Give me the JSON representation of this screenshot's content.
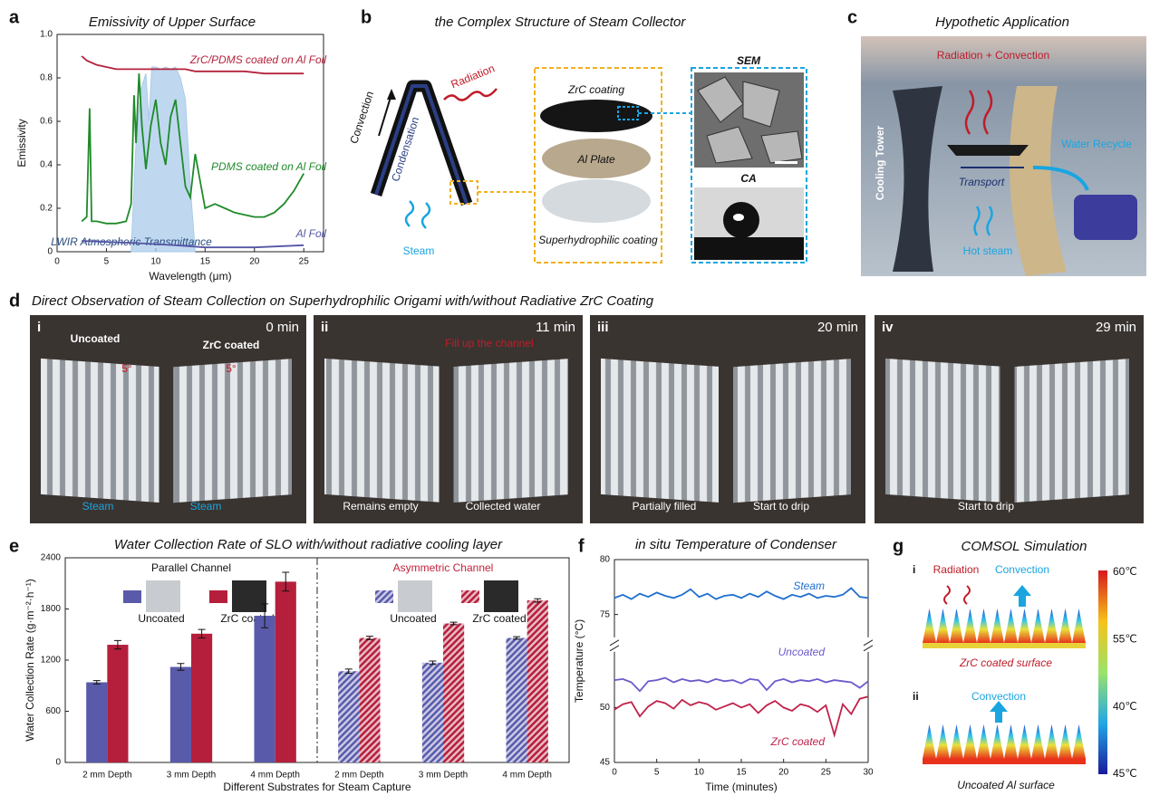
{
  "panel_labels": [
    "a",
    "b",
    "c",
    "d",
    "e",
    "f",
    "g"
  ],
  "chart_data": [
    {
      "type": "line",
      "title": "Emissivity of Upper Surface",
      "x_label": "Wavelength (μm)",
      "y_label": "Emissivity",
      "xlim": [
        0,
        27
      ],
      "xticks": [
        0,
        5,
        10,
        15,
        20,
        25
      ],
      "ylim": [
        0,
        1
      ],
      "yticks": [
        0,
        0.2,
        0.4,
        0.6,
        0.8,
        {
          "value": 1,
          "label": "1.0"
        }
      ],
      "series": [
        {
          "name": "LWIR Atmospheric Transmittance",
          "color": "#a9cbe9",
          "kind": "area",
          "x": [
            7.5,
            8,
            8.5,
            9,
            9.3,
            9.6,
            10,
            10.5,
            11,
            11.5,
            12,
            12.5,
            13,
            13.5,
            14
          ],
          "values": [
            0,
            0.5,
            0.75,
            0.82,
            0.6,
            0.85,
            0.85,
            0.84,
            0.85,
            0.84,
            0.85,
            0.8,
            0.7,
            0.3,
            0
          ]
        },
        {
          "name": "ZrC/PDMS coated on Al Foil",
          "color": "#b5223c",
          "x": [
            2.5,
            3,
            4,
            5,
            6,
            7,
            8,
            9,
            10,
            11,
            12,
            13,
            14,
            15,
            17,
            19,
            21,
            23,
            25
          ],
          "values": [
            0.9,
            0.88,
            0.86,
            0.85,
            0.84,
            0.84,
            0.84,
            0.84,
            0.84,
            0.84,
            0.84,
            0.84,
            0.83,
            0.83,
            0.83,
            0.83,
            0.82,
            0.82,
            0.82
          ]
        },
        {
          "name": "PDMS coated on Al Foil",
          "color": "#1f8a2a",
          "x": [
            2.5,
            3,
            3.3,
            3.5,
            4,
            5,
            6,
            7,
            7.5,
            7.8,
            8,
            8.3,
            8.6,
            9,
            9.5,
            10,
            10.5,
            11,
            11.5,
            12,
            12.5,
            13,
            13.5,
            14,
            15,
            16,
            17,
            18,
            19,
            20,
            21,
            22,
            23,
            24,
            25
          ],
          "values": [
            0.14,
            0.16,
            0.66,
            0.14,
            0.14,
            0.13,
            0.13,
            0.14,
            0.22,
            0.72,
            0.5,
            0.82,
            0.58,
            0.38,
            0.58,
            0.7,
            0.5,
            0.4,
            0.62,
            0.7,
            0.5,
            0.3,
            0.25,
            0.45,
            0.2,
            0.22,
            0.2,
            0.18,
            0.17,
            0.16,
            0.16,
            0.18,
            0.22,
            0.28,
            0.36
          ]
        },
        {
          "name": "Al Foil",
          "color": "#5555a5",
          "x": [
            2.5,
            5,
            8,
            10,
            12,
            15,
            20,
            25
          ],
          "values": [
            0.05,
            0.045,
            0.04,
            0.035,
            0.03,
            0.02,
            0.02,
            0.03
          ]
        }
      ]
    },
    {
      "type": "bar",
      "title": "Water Collection Rate of SLO with/without radiative cooling layer",
      "x_label": "Different Substrates for Steam Capture",
      "y_label": "Water Collection Rate (g·m⁻²·h⁻¹)",
      "categories": [
        "2 mm Depth",
        "3 mm Depth",
        "4 mm Depth",
        "2 mm Depth",
        "3 mm Depth",
        "4 mm Depth"
      ],
      "groups": [
        {
          "name": "Parallel Channel",
          "color": "#111111",
          "pattern": "solid"
        },
        {
          "name": "Asymmetric Channel",
          "color": "#c0223c",
          "pattern": "hatched"
        }
      ],
      "ylim": [
        0,
        2400
      ],
      "yticks": [
        0,
        600,
        1200,
        1800,
        2400
      ],
      "series": [
        {
          "name": "Uncoated",
          "color": "#5a5aaa",
          "values": [
            940,
            1120,
            1720,
            1070,
            1170,
            1460
          ],
          "errors": [
            20,
            40,
            140,
            25,
            20,
            15
          ]
        },
        {
          "name": "ZrC coated",
          "color": "#b51f3c",
          "values": [
            1380,
            1510,
            2120,
            1460,
            1630,
            1900
          ],
          "errors": [
            50,
            50,
            110,
            20,
            15,
            20
          ]
        }
      ]
    },
    {
      "type": "line",
      "title": "in situ Temperature of Condenser",
      "x_label": "Time (minutes)",
      "y_label": "Temperature (°C)",
      "xlim": [
        0,
        30
      ],
      "xticks": [
        0,
        5,
        10,
        15,
        20,
        25,
        30
      ],
      "ylim": [
        45,
        80
      ],
      "yticks": [
        45,
        50,
        75,
        80
      ],
      "axis_break": [
        54.5,
        73.5
      ],
      "x": [
        0,
        1,
        2,
        3,
        4,
        5,
        6,
        7,
        8,
        9,
        10,
        11,
        12,
        13,
        14,
        15,
        16,
        17,
        18,
        19,
        20,
        21,
        22,
        23,
        24,
        25,
        26,
        27,
        28,
        29,
        30
      ],
      "series": [
        {
          "name": "Steam",
          "color": "#1f6fd0",
          "values": [
            76.5,
            76.8,
            76.4,
            76.9,
            76.6,
            77.0,
            76.7,
            76.5,
            76.8,
            77.3,
            76.6,
            76.9,
            76.4,
            76.7,
            76.8,
            76.5,
            76.9,
            76.6,
            77.1,
            76.7,
            76.4,
            76.8,
            76.6,
            76.9,
            76.5,
            76.7,
            76.6,
            76.8,
            77.4,
            76.6,
            76.5
          ]
        },
        {
          "name": "Uncoated",
          "color": "#6a5acd",
          "values": [
            52.5,
            52.6,
            52.3,
            51.5,
            52.4,
            52.5,
            52.7,
            52.3,
            52.6,
            52.4,
            52.5,
            52.3,
            52.6,
            52.4,
            52.5,
            52.2,
            52.6,
            52.5,
            51.6,
            52.4,
            52.6,
            52.3,
            52.5,
            52.4,
            52.6,
            52.3,
            52.5,
            52.4,
            52.3,
            51.8,
            52.4
          ]
        },
        {
          "name": "ZrC coated",
          "color": "#c0224a",
          "values": [
            49.8,
            50.3,
            50.5,
            49.2,
            50.1,
            50.6,
            50.4,
            49.9,
            50.7,
            50.2,
            50.5,
            50.3,
            49.8,
            50.1,
            50.4,
            50.0,
            50.3,
            49.5,
            50.2,
            50.6,
            50.0,
            49.7,
            50.3,
            50.1,
            49.6,
            50.2,
            47.5,
            50.3,
            49.4,
            50.8,
            51.0
          ]
        }
      ]
    }
  ],
  "structure": {
    "title": "the Complex Structure of Steam Collector",
    "convection": "Convection",
    "radiation": "Radiation",
    "condensation": "Condensation",
    "steam": "Steam",
    "zrc_coating": "ZrC coating",
    "al_plate": "Al Plate",
    "superhydrophilic": "Superhydrophilic coating",
    "sem": "SEM",
    "ca": "CA"
  },
  "application": {
    "title": "Hypothetic Application",
    "radiation_convection": "Radiation + Convection",
    "cooling_tower": "Cooling Tower",
    "water_recycle": "Water Recycle",
    "transport": "Transport",
    "hot_steam": "Hot steam"
  },
  "observation": {
    "title": "Direct Observation of Steam Collection on Superhydrophilic Origami with/without Radiative ZrC Coating",
    "frames": [
      {
        "label": "i",
        "time": "0 min",
        "notes": [
          "Uncoated",
          "ZrC coated",
          "5°",
          "5°",
          "Steam",
          "Steam"
        ]
      },
      {
        "label": "ii",
        "time": "11 min",
        "notes": [
          "Fill up the channel",
          "Remains empty",
          "Collected water"
        ]
      },
      {
        "label": "iii",
        "time": "20 min",
        "notes": [
          "Partially filled",
          "Start to drip"
        ]
      },
      {
        "label": "iv",
        "time": "29 min",
        "notes": [
          "Start to drip"
        ]
      }
    ]
  },
  "simulation": {
    "title": "COMSOL Simulation",
    "cases": [
      {
        "label": "i",
        "arrows": [
          "Radiation",
          "Convection"
        ],
        "surface": "ZrC coated surface"
      },
      {
        "label": "ii",
        "arrows": [
          "Convection"
        ],
        "surface": "Uncoated Al surface"
      }
    ],
    "colorbar_labels": [
      "60℃",
      "55℃",
      "40℃",
      "45℃"
    ]
  }
}
